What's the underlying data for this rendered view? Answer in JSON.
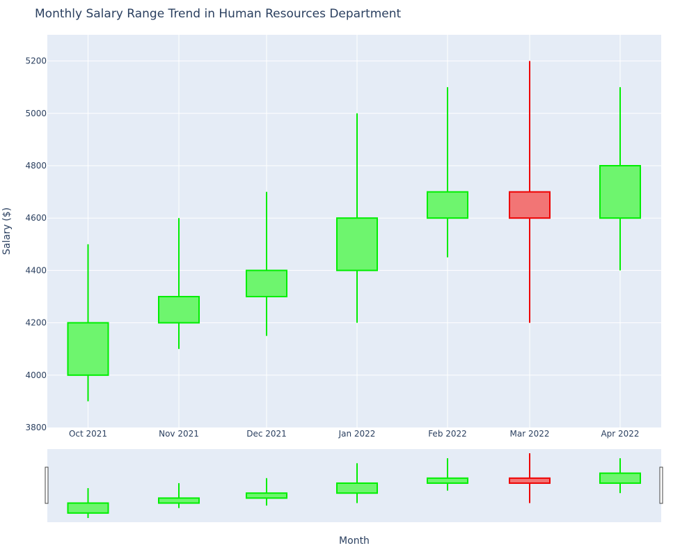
{
  "chart_data": {
    "type": "candlestick",
    "title": "Monthly Salary Range Trend in Human Resources Department",
    "xlabel": "Month",
    "ylabel": "Salary ($)",
    "ylim": [
      3800,
      5300
    ],
    "yticks": [
      3800,
      4000,
      4200,
      4400,
      4600,
      4800,
      5000,
      5200
    ],
    "grid": true,
    "range_slider": true,
    "categories": [
      "Oct 2021",
      "Nov 2021",
      "Dec 2021",
      "Jan 2022",
      "Feb 2022",
      "Mar 2022",
      "Apr 2022"
    ],
    "open": [
      4000,
      4200,
      4300,
      4400,
      4600,
      4700,
      4600
    ],
    "high": [
      4500,
      4600,
      4700,
      5000,
      5100,
      5200,
      5100
    ],
    "low": [
      3900,
      4100,
      4150,
      4200,
      4450,
      4200,
      4400
    ],
    "close": [
      4200,
      4300,
      4400,
      4600,
      4700,
      4600,
      4800
    ],
    "colors": {
      "increasing_line": "#00ee00",
      "increasing_fill": "#6ef56e",
      "decreasing_line": "#ee0000",
      "decreasing_fill": "#f27575",
      "plot_bg": "#e5ecf6",
      "grid": "#ffffff",
      "text": "#2a3f5f"
    }
  }
}
